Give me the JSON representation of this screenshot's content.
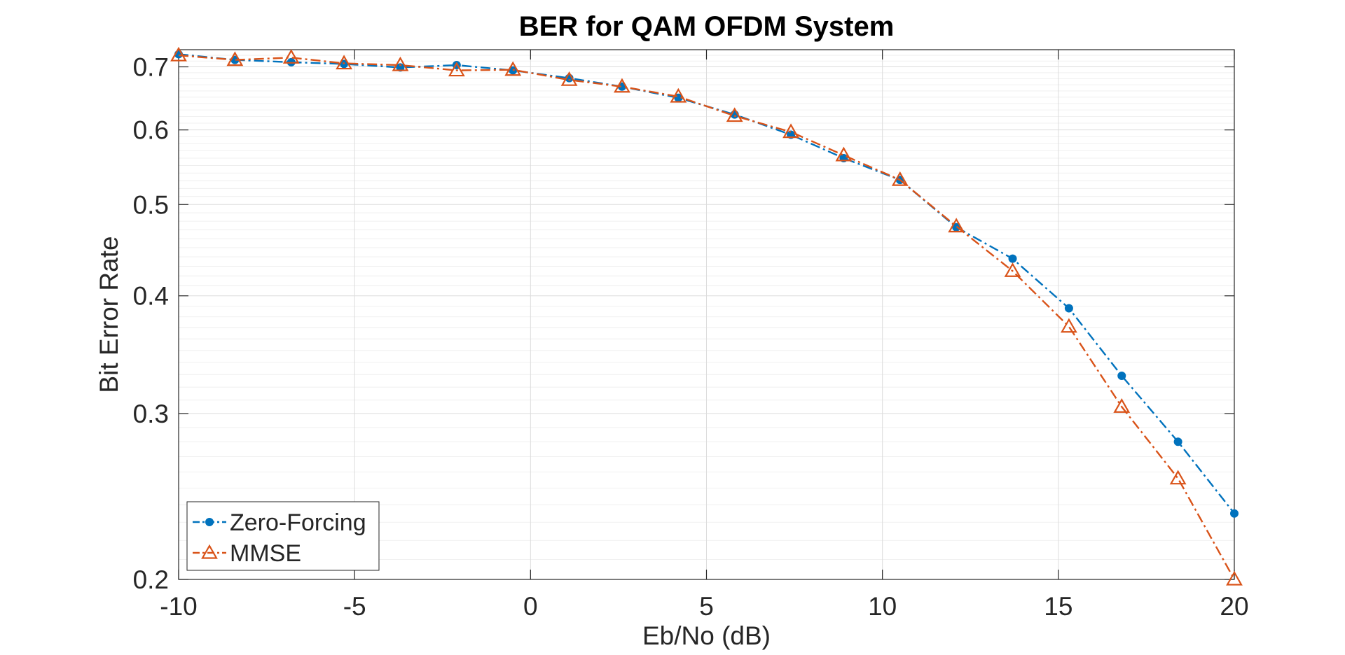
{
  "chart_data": {
    "type": "line",
    "title": "BER for QAM OFDM System",
    "xlabel": "Eb/No (dB)",
    "ylabel": "Bit Error Rate",
    "xlim": [
      -10,
      20
    ],
    "ylim": [
      0.2,
      0.73
    ],
    "yscale": "log",
    "grid": true,
    "minor_grid": true,
    "legend_position": "bottom-left",
    "x_ticks": [
      -10,
      -5,
      0,
      5,
      10,
      15,
      20
    ],
    "x_tick_labels": [
      "-10",
      "-5",
      "0",
      "5",
      "10",
      "15",
      "20"
    ],
    "y_ticks": [
      0.2,
      0.3,
      0.4,
      0.5,
      0.6,
      0.7
    ],
    "y_tick_labels": [
      "0.2",
      "0.3",
      "0.4",
      "0.5",
      "0.6",
      "0.7"
    ],
    "x": [
      -10,
      -8.4,
      -6.8,
      -5.3,
      -3.7,
      -2.1,
      -0.5,
      1.1,
      2.6,
      4.2,
      5.8,
      7.4,
      8.9,
      10.5,
      12.1,
      13.7,
      15.3,
      16.8,
      18.4,
      20
    ],
    "series": [
      {
        "name": "Zero-Forcing",
        "color": "#0072BD",
        "marker": "circle",
        "line_style": "dash-dot",
        "values": [
          0.722,
          0.712,
          0.708,
          0.705,
          0.699,
          0.703,
          0.694,
          0.681,
          0.667,
          0.649,
          0.623,
          0.593,
          0.56,
          0.531,
          0.473,
          0.438,
          0.388,
          0.329,
          0.28,
          0.235
        ]
      },
      {
        "name": "MMSE",
        "color": "#D95319",
        "marker": "triangle",
        "line_style": "dash-dot",
        "values": [
          0.72,
          0.712,
          0.716,
          0.706,
          0.703,
          0.694,
          0.695,
          0.678,
          0.667,
          0.651,
          0.621,
          0.597,
          0.564,
          0.531,
          0.474,
          0.425,
          0.371,
          0.305,
          0.256,
          0.2
        ]
      }
    ]
  }
}
